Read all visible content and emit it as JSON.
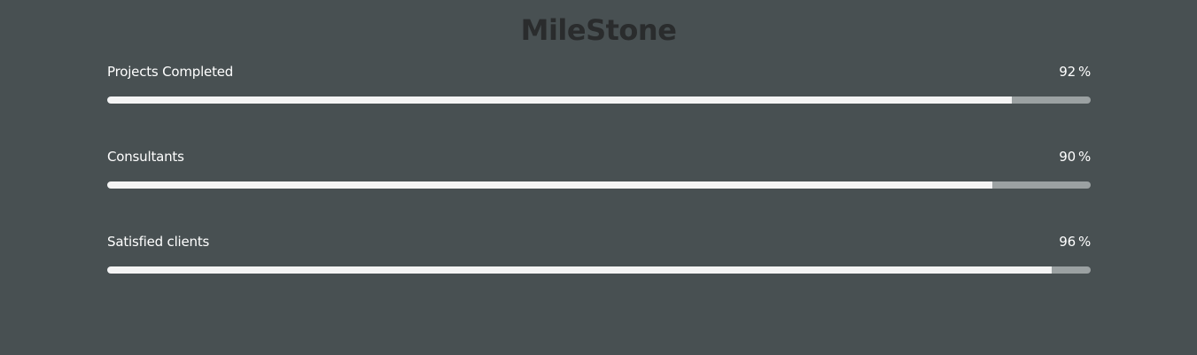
{
  "heading": "MileStone",
  "milestones": [
    {
      "label": "Projects Completed",
      "value": "92",
      "unit": "%",
      "fraction": 0.92
    },
    {
      "label": "Consultants",
      "value": "90",
      "unit": "%",
      "fraction": 0.9
    },
    {
      "label": "Satisfied clients",
      "value": "96",
      "unit": "%",
      "fraction": 0.96
    }
  ],
  "colors": {
    "background": "#485052",
    "heading": "#2a2c2d",
    "text": "#ffffff",
    "bar_fill": "#f4f4f4",
    "bar_track": "#9ba1a2"
  }
}
